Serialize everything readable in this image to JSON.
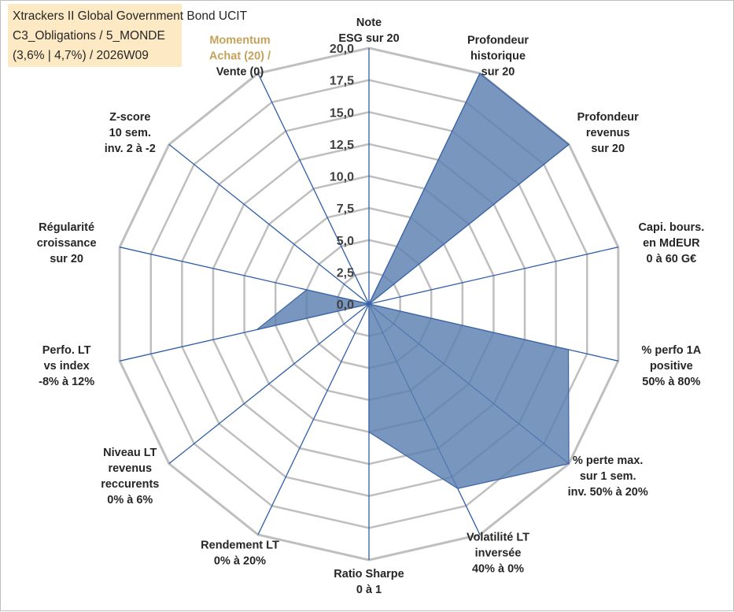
{
  "title_lines": [
    "Xtrackers II Global Government Bond UCIT",
    "C3_Obligations / 5_MONDE",
    "(3,6% | 4,7%) / 2026W09"
  ],
  "colors": {
    "fill": "#5b7fb1",
    "stroke": "#3a63a6",
    "grid": "#bfbfbf",
    "spoke": "#2f5ea8",
    "momentum_highlight": "#c5a25a",
    "title_bg": "#fde9c4"
  },
  "chart_data": {
    "type": "radar",
    "axes": [
      {
        "lines": [
          "Note",
          "ESG sur 20"
        ]
      },
      {
        "lines": [
          "Profondeur",
          "historique",
          "sur 20"
        ]
      },
      {
        "lines": [
          "Profondeur",
          "revenus",
          "sur 20"
        ]
      },
      {
        "lines": [
          "Capi. bours.",
          "en MdEUR",
          "0 à 60 G€"
        ]
      },
      {
        "lines": [
          "% perfo 1A",
          "positive",
          "50% à 80%"
        ]
      },
      {
        "lines": [
          "% perte max.",
          "sur 1 sem.",
          "inv. 50% à 20%"
        ]
      },
      {
        "lines": [
          "Volatilité LT",
          "inversée",
          "40% à 0%"
        ]
      },
      {
        "lines": [
          "Ratio Sharpe",
          "0 à 1"
        ]
      },
      {
        "lines": [
          "Rendement LT",
          "0% à 20%"
        ]
      },
      {
        "lines": [
          "Niveau LT",
          "revenus",
          "reccurents",
          "0% à 6%"
        ]
      },
      {
        "lines": [
          "Perfo. LT",
          "vs index",
          "-8% à 12%"
        ]
      },
      {
        "lines": [
          "Régularité",
          "croissance",
          "sur 20"
        ]
      },
      {
        "lines": [
          "Z-score",
          "10 sem.",
          "inv. 2 à -2"
        ]
      },
      {
        "lines": [
          "Momentum",
          "Achat (20) /",
          "Vente (0)"
        ],
        "highlight_lines": 2
      }
    ],
    "values": [
      0,
      20,
      20,
      0,
      16,
      20,
      16,
      10,
      0,
      0,
      9,
      5,
      0,
      0
    ],
    "ylim": [
      0,
      20
    ],
    "ticks": [
      "0,0",
      "2,5",
      "5,0",
      "7,5",
      "10,0",
      "12,5",
      "15,0",
      "17,5",
      "20,0"
    ],
    "grid": true,
    "legend": "none"
  }
}
